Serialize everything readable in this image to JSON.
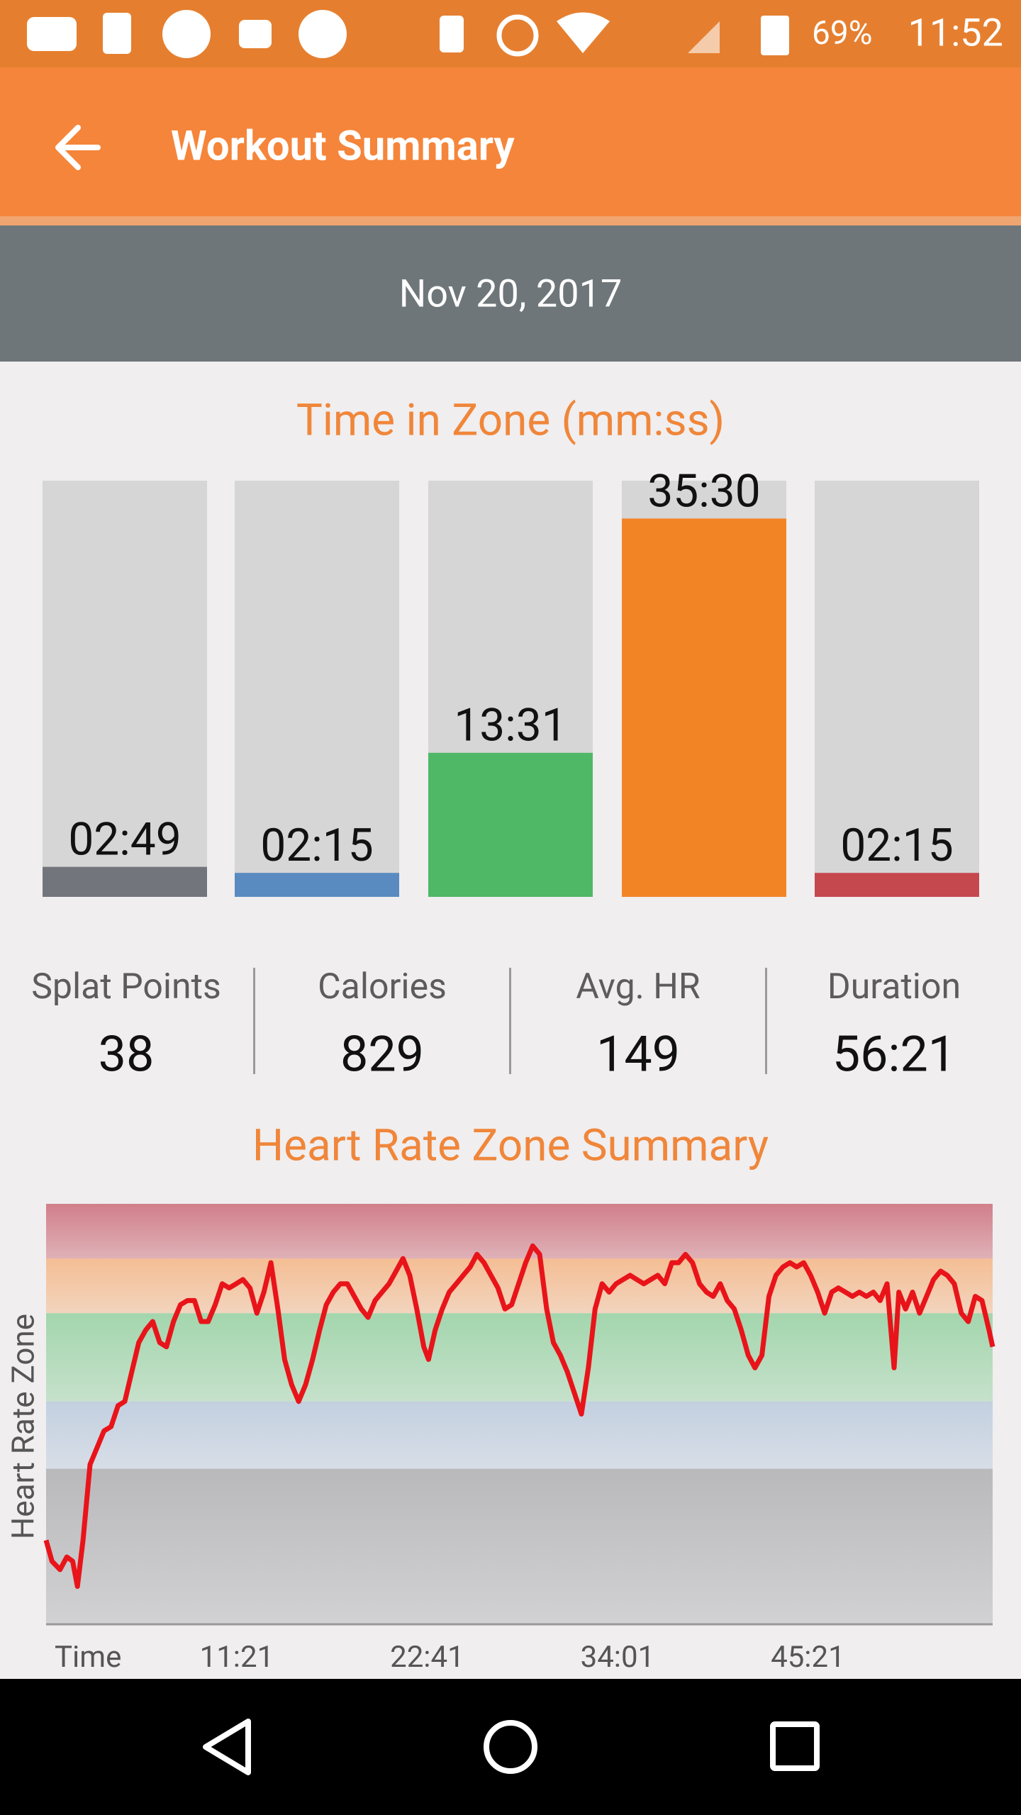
{
  "status_bar": {
    "battery": "69%",
    "time": "11:52"
  },
  "app_bar": {
    "title": "Workout Summary"
  },
  "date": "Nov 20, 2017",
  "time_in_zone": {
    "type": "bar",
    "title": "Time in Zone (mm:ss)",
    "values": [
      169,
      135,
      811,
      2130,
      135
    ],
    "value_labels": [
      "02:49",
      "02:15",
      "13:31",
      "35:30",
      "02:15"
    ],
    "colors": [
      "#72757c",
      "#5a8bc0",
      "#4fb866",
      "#f38426",
      "#c6484f"
    ],
    "track_color": "#d6d6d6",
    "ylim": [
      0,
      2343
    ]
  },
  "stats": [
    {
      "label": "Splat Points",
      "value": "38"
    },
    {
      "label": "Calories",
      "value": "829"
    },
    {
      "label": "Avg. HR",
      "value": "149"
    },
    {
      "label": "Duration",
      "value": "56:21"
    }
  ],
  "heart_rate_chart": {
    "type": "line",
    "title": "Heart Rate Zone Summary",
    "y_label": "Heart Rate Zone",
    "x_label": "Time",
    "color": "#e8141a",
    "xlim": [
      0,
      3381
    ],
    "ylim": [
      0,
      100
    ],
    "xticks": [
      {
        "value": 681,
        "label": "11:21"
      },
      {
        "value": 1361,
        "label": "22:41"
      },
      {
        "value": 2041,
        "label": "34:01"
      },
      {
        "value": 2721,
        "label": "45:21"
      }
    ],
    "zones": [
      {
        "from": 0,
        "to": 37,
        "color": "#b9b9bb"
      },
      {
        "from": 37,
        "to": 53,
        "color": "#c3d0e0"
      },
      {
        "from": 53,
        "to": 74,
        "color": "#a3d6ad"
      },
      {
        "from": 74,
        "to": 87,
        "color": "#f4be94"
      },
      {
        "from": 87,
        "to": 100,
        "color": "#d17f8a"
      }
    ],
    "x": [
      0,
      21,
      50,
      74,
      95,
      112,
      132,
      157,
      182,
      207,
      232,
      257,
      281,
      306,
      331,
      356,
      381,
      406,
      430,
      455,
      480,
      505,
      530,
      554,
      579,
      604,
      629,
      654,
      679,
      703,
      728,
      753,
      778,
      803,
      828,
      852,
      877,
      902,
      927,
      952,
      977,
      1001,
      1026,
      1051,
      1076,
      1101,
      1126,
      1150,
      1175,
      1200,
      1225,
      1250,
      1275,
      1299,
      1324,
      1349,
      1366,
      1390,
      1415,
      1440,
      1465,
      1490,
      1515,
      1539,
      1564,
      1589,
      1614,
      1639,
      1663,
      1688,
      1713,
      1738,
      1763,
      1788,
      1812,
      1837,
      1862,
      1887,
      1912,
      1937,
      1961,
      1986,
      2011,
      2036,
      2061,
      2086,
      2110,
      2135,
      2160,
      2185,
      2210,
      2235,
      2259,
      2284,
      2309,
      2334,
      2359,
      2383,
      2408,
      2433,
      2458,
      2483,
      2508,
      2532,
      2557,
      2582,
      2607,
      2632,
      2657,
      2681,
      2706,
      2731,
      2756,
      2781,
      2806,
      2830,
      2855,
      2880,
      2905,
      2930,
      2955,
      2979,
      3004,
      3029,
      3046,
      3070,
      3095,
      3120,
      3145,
      3170,
      3195,
      3219,
      3244,
      3269,
      3294,
      3319,
      3343,
      3368,
      3381
    ],
    "values": [
      20,
      15,
      13,
      16,
      15,
      9,
      20,
      38,
      42,
      46,
      47,
      52,
      53,
      60,
      67,
      70,
      72,
      67,
      66,
      72,
      76,
      77,
      77,
      72,
      72,
      76,
      81,
      80,
      81,
      82,
      80,
      74,
      79,
      86,
      75,
      63,
      57,
      53,
      57,
      63,
      70,
      76,
      79,
      81,
      81,
      78,
      75,
      73,
      77,
      79,
      81,
      84,
      87,
      83,
      75,
      66,
      63,
      70,
      75,
      79,
      81,
      83,
      85,
      88,
      86,
      83,
      80,
      75,
      76,
      81,
      86,
      90,
      88,
      75,
      67,
      64,
      60,
      55,
      50,
      61,
      75,
      81,
      79,
      81,
      82,
      83,
      82,
      81,
      82,
      83,
      81,
      86,
      86,
      88,
      86,
      81,
      79,
      78,
      81,
      77,
      75,
      70,
      64,
      61,
      64,
      78,
      83,
      85,
      86,
      85,
      86,
      83,
      79,
      74,
      79,
      80,
      79,
      78,
      79,
      78,
      79,
      77,
      81,
      61,
      79,
      75,
      79,
      74,
      78,
      82,
      84,
      83,
      81,
      74,
      72,
      78,
      77,
      70,
      66
    ]
  }
}
